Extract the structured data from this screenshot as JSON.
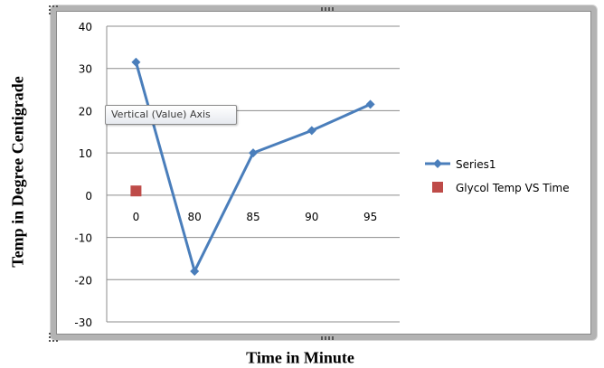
{
  "chart_data": {
    "type": "line",
    "title": "",
    "xlabel": "Time in Minute",
    "ylabel": "Temp in Degree Centigrade",
    "categories": [
      "0",
      "80",
      "85",
      "90",
      "95"
    ],
    "ylim": [
      -30,
      40
    ],
    "yticks": [
      -30,
      -20,
      -10,
      0,
      10,
      20,
      30,
      40
    ],
    "grid": true,
    "legend_position": "right",
    "series": [
      {
        "name": "Series1",
        "values": [
          31.5,
          -18,
          10,
          15.3,
          21.5
        ],
        "color": "#4a7ebb",
        "marker": "diamond",
        "line": true
      },
      {
        "name": "Glycol Temp VS Time",
        "values": [
          1,
          null,
          null,
          null,
          null
        ],
        "color": "#be4b48",
        "marker": "square",
        "line": false
      }
    ]
  },
  "tooltip": {
    "text": "Vertical (Value) Axis"
  }
}
